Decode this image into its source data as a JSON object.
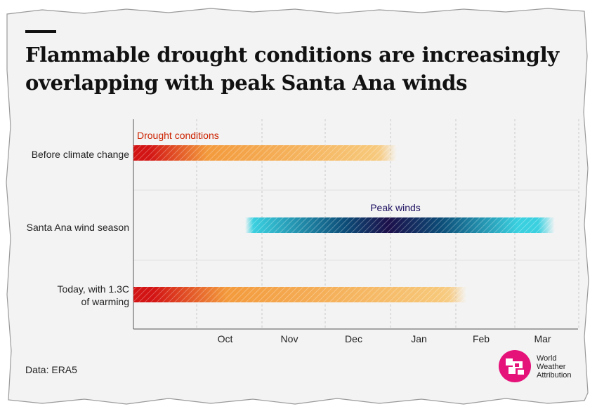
{
  "title": {
    "lines": [
      "Flammable drought conditions are increasingly",
      "overlapping with peak Santa Ana winds"
    ]
  },
  "rows": [
    {
      "label_lines": [
        "Before climate change"
      ]
    },
    {
      "label_lines": [
        "Santa Ana wind season"
      ]
    },
    {
      "label_lines": [
        "Today, with 1.3C",
        "of warming"
      ]
    }
  ],
  "source": "Data: ERA5",
  "logo": {
    "lines": [
      "World",
      "Weather",
      "Attribution"
    ],
    "icon": "wwa-logo-icon"
  },
  "colors": {
    "drought_strong": "#d31414",
    "drought_mid": "#f39a3c",
    "drought_light": "#f7c87a",
    "wind_light": "#3ad0e0",
    "wind_mid": "#0c4d78",
    "wind_dark": "#1c0f4a",
    "annotation_drought": "#cc2200",
    "annotation_wind": "#1c1060",
    "logo": "#e5127a"
  },
  "chart_data": {
    "type": "timeline",
    "x_axis": {
      "type": "time",
      "range": [
        "2000-09-01",
        "2001-03-31"
      ],
      "tick_labels": [
        "Oct",
        "Nov",
        "Dec",
        "Jan",
        "Feb",
        "Mar"
      ],
      "tick_dates": [
        "2000-10-01",
        "2000-11-01",
        "2000-12-01",
        "2001-01-01",
        "2001-02-01",
        "2001-03-01"
      ]
    },
    "gridlines": true,
    "bars": [
      {
        "row": "Before climate change",
        "start": "2000-09-01",
        "end": "2000-12-27",
        "fade_end": "2001-01-04",
        "annotation": "Drought conditions",
        "color_scale": "drought"
      },
      {
        "row": "Santa Ana wind season",
        "start": "2000-10-28",
        "end": "2001-03-12",
        "fade_start": "2000-10-24",
        "fade_end": "2001-03-20",
        "peak": "2000-12-31",
        "annotation": "Peak winds",
        "color_scale": "wind"
      },
      {
        "row": "Today, with 1.3C of warming",
        "start": "2000-09-01",
        "end": "2001-01-29",
        "fade_end": "2001-02-06",
        "color_scale": "drought"
      }
    ]
  }
}
